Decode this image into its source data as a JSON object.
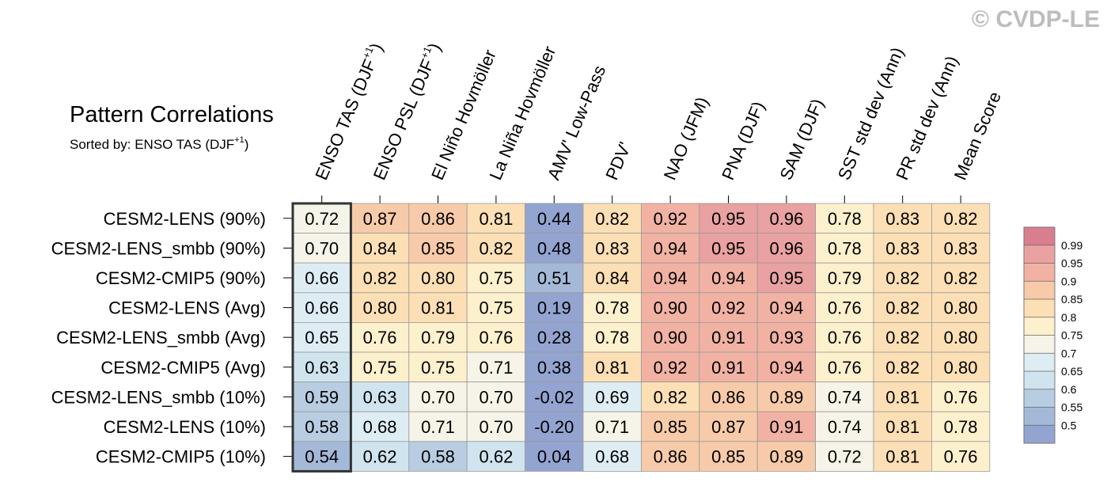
{
  "watermark": "© CVDP-LE",
  "title": "Pattern Correlations",
  "subtitle_prefix": "Sorted by: ENSO TAS (DJF",
  "subtitle_sup": "+1",
  "subtitle_suffix": ")",
  "chart_data": {
    "type": "heatmap",
    "title": "Pattern Correlations",
    "sorted_by": "ENSO TAS (DJF+1)",
    "columns": [
      {
        "text": "ENSO TAS (DJF",
        "sup": "+1",
        "tail": ")"
      },
      {
        "text": "ENSO PSL (DJF",
        "sup": "+1",
        "tail": ")"
      },
      {
        "text": "El Niño Hovmöller",
        "sup": "",
        "tail": ""
      },
      {
        "text": "La Niña Hovmöller",
        "sup": "",
        "tail": ""
      },
      {
        "text": "AMV' Low-Pass",
        "sup": "",
        "tail": ""
      },
      {
        "text": "PDV'",
        "sup": "",
        "tail": ""
      },
      {
        "text": "NAO (JFM)",
        "sup": "",
        "tail": ""
      },
      {
        "text": "PNA (DJF)",
        "sup": "",
        "tail": ""
      },
      {
        "text": "SAM (DJF)",
        "sup": "",
        "tail": ""
      },
      {
        "text": "SST std dev (Ann)",
        "sup": "",
        "tail": ""
      },
      {
        "text": "PR std dev (Ann)",
        "sup": "",
        "tail": ""
      },
      {
        "text": "Mean Score",
        "sup": "",
        "tail": ""
      }
    ],
    "rows": [
      "CESM2-LENS (90%)",
      "CESM2-LENS_smbb (90%)",
      "CESM2-CMIP5 (90%)",
      "CESM2-LENS (Avg)",
      "CESM2-LENS_smbb (Avg)",
      "CESM2-CMIP5 (Avg)",
      "CESM2-LENS_smbb (10%)",
      "CESM2-LENS (10%)",
      "CESM2-CMIP5 (10%)"
    ],
    "values": [
      [
        "0.72",
        "0.87",
        "0.86",
        "0.81",
        "0.44",
        "0.82",
        "0.92",
        "0.95",
        "0.96",
        "0.78",
        "0.83",
        "0.82"
      ],
      [
        "0.70",
        "0.84",
        "0.85",
        "0.82",
        "0.48",
        "0.83",
        "0.94",
        "0.95",
        "0.96",
        "0.78",
        "0.83",
        "0.83"
      ],
      [
        "0.66",
        "0.82",
        "0.80",
        "0.75",
        "0.51",
        "0.84",
        "0.94",
        "0.94",
        "0.95",
        "0.79",
        "0.82",
        "0.82"
      ],
      [
        "0.66",
        "0.80",
        "0.81",
        "0.75",
        "0.19",
        "0.78",
        "0.90",
        "0.92",
        "0.94",
        "0.76",
        "0.82",
        "0.80"
      ],
      [
        "0.65",
        "0.76",
        "0.79",
        "0.76",
        "0.28",
        "0.78",
        "0.90",
        "0.91",
        "0.93",
        "0.76",
        "0.82",
        "0.80"
      ],
      [
        "0.63",
        "0.75",
        "0.75",
        "0.71",
        "0.38",
        "0.81",
        "0.92",
        "0.91",
        "0.94",
        "0.76",
        "0.82",
        "0.80"
      ],
      [
        "0.59",
        "0.63",
        "0.70",
        "0.70",
        "-0.02",
        "0.69",
        "0.82",
        "0.86",
        "0.89",
        "0.74",
        "0.81",
        "0.76"
      ],
      [
        "0.58",
        "0.68",
        "0.71",
        "0.70",
        "-0.20",
        "0.71",
        "0.85",
        "0.87",
        "0.91",
        "0.74",
        "0.81",
        "0.78"
      ],
      [
        "0.54",
        "0.62",
        "0.58",
        "0.62",
        "0.04",
        "0.68",
        "0.86",
        "0.85",
        "0.89",
        "0.72",
        "0.81",
        "0.76"
      ]
    ],
    "highlighted_column": 0,
    "colorbar": {
      "levels": [
        "0.99",
        "0.95",
        "0.9",
        "0.85",
        "0.8",
        "0.75",
        "0.7",
        "0.65",
        "0.6",
        "0.55",
        "0.5"
      ],
      "level_values": [
        0.99,
        0.95,
        0.9,
        0.85,
        0.8,
        0.75,
        0.7,
        0.65,
        0.6,
        0.55,
        0.5
      ],
      "colors": [
        "#d87e8e",
        "#e9a2a1",
        "#f1b2a4",
        "#f7cba9",
        "#fcdfb5",
        "#fdf0cd",
        "#f6f4e8",
        "#deedf4",
        "#cfe4ee",
        "#b8cde2",
        "#a4b8d8",
        "#93a4d1"
      ]
    }
  }
}
